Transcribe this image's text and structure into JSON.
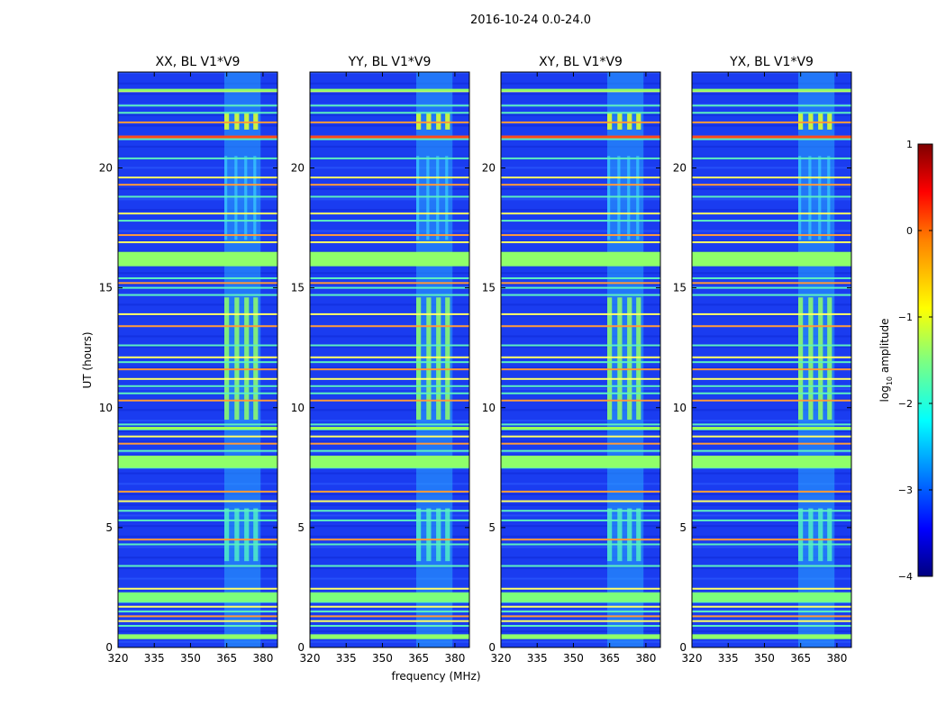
{
  "chart_data": {
    "type": "heatmap",
    "title": "2016-10-24 0.0-24.0",
    "xlabel": "frequency (MHz)",
    "ylabel": "UT (hours)",
    "xlim": [
      320,
      386
    ],
    "ylim": [
      0,
      24
    ],
    "xticks": [
      320,
      335,
      350,
      365,
      380
    ],
    "yticks": [
      0,
      5,
      10,
      15,
      20
    ],
    "colorscale": "jet",
    "panels": [
      {
        "title": "XX, BL V1*V9",
        "band_start": 364,
        "band_end": 379
      },
      {
        "title": "YY, BL V1*V9",
        "band_start": 364,
        "band_end": 379
      },
      {
        "title": "XY, BL V1*V9",
        "band_start": 364,
        "band_end": 379
      },
      {
        "title": "YX, BL V1*V9",
        "band_start": 364,
        "band_end": 379
      }
    ],
    "colorbar": {
      "label": "amplitude",
      "label_prefix": "log",
      "label_subscript": "10",
      "range": [
        -4,
        1
      ],
      "ticks": [
        "1",
        "0",
        "−1",
        "−2",
        "−3",
        "−4"
      ],
      "tick_values": [
        1,
        0,
        -1,
        -2,
        -3,
        -4
      ]
    },
    "rfi_lines_ut": [
      0.4,
      0.5,
      0.9,
      1.1,
      1.3,
      1.5,
      1.7,
      1.9,
      2.2,
      2.45,
      3.4,
      4.3,
      4.5,
      5.3,
      5.7,
      6.1,
      6.5,
      7.5,
      7.8,
      8.2,
      8.5,
      8.8,
      9.1,
      9.3,
      10.3,
      10.6,
      10.9,
      11.2,
      11.6,
      11.9,
      12.1,
      12.6,
      13.4,
      13.9,
      14.7,
      15.0,
      15.2,
      15.4,
      16.1,
      16.9,
      17.2,
      17.8,
      18.1,
      18.8,
      19.3,
      19.6,
      20.4,
      21.2,
      21.9,
      22.3,
      22.6,
      23.2
    ],
    "strong_rfi_ut": [
      1.9,
      2.1,
      7.6,
      7.8,
      9.3,
      16.2,
      21.3,
      23.3
    ]
  }
}
